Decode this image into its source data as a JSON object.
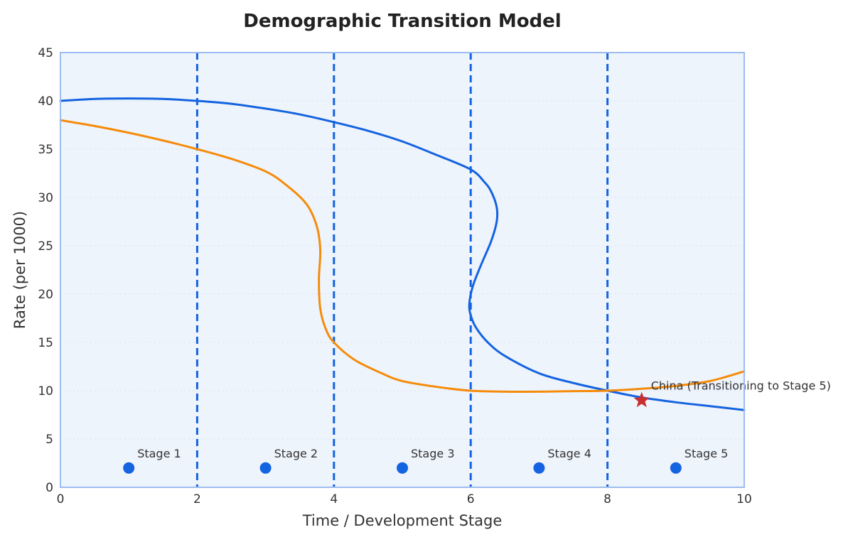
{
  "chart_data": {
    "type": "line",
    "title": "Demographic Transition Model",
    "xlabel": "Time / Development Stage",
    "ylabel": "Rate (per 1000)",
    "xlim": [
      0,
      10
    ],
    "ylim": [
      0,
      45
    ],
    "xticks": [
      0,
      2,
      4,
      6,
      8,
      10
    ],
    "yticks": [
      0,
      5,
      10,
      15,
      20,
      25,
      30,
      35,
      40,
      45
    ],
    "grid": "horizontal dotted",
    "colors": {
      "plot_background": "#eef4fc",
      "plot_border": "#9dbcf0",
      "birth_rate": "#1463e0",
      "death_rate": "#f58b0a",
      "stage_divider": "#1463e0",
      "stage_marker": "#1463e0",
      "highlight": "#c8302e"
    },
    "stage_dividers": [
      2,
      4,
      6,
      8
    ],
    "series": [
      {
        "key": "blue_curve",
        "color": "#1463e0",
        "points": [
          [
            0,
            40.0
          ],
          [
            0.5,
            40.2
          ],
          [
            1,
            40.25
          ],
          [
            1.5,
            40.2
          ],
          [
            2,
            40.0
          ],
          [
            2.5,
            39.7
          ],
          [
            3,
            39.2
          ],
          [
            3.5,
            38.6
          ],
          [
            4,
            37.8
          ],
          [
            4.5,
            36.9
          ],
          [
            5,
            35.8
          ],
          [
            5.5,
            34.4
          ],
          [
            6,
            32.9
          ],
          [
            6.2,
            31.6
          ],
          [
            6.3,
            30.6
          ],
          [
            6.38,
            29.0
          ],
          [
            6.38,
            27.5
          ],
          [
            6.3,
            25.5
          ],
          [
            6.15,
            23.0
          ],
          [
            6.03,
            20.8
          ],
          [
            5.98,
            19.0
          ],
          [
            6.0,
            17.8
          ],
          [
            6.08,
            16.5
          ],
          [
            6.25,
            15.0
          ],
          [
            6.5,
            13.6
          ],
          [
            7,
            11.8
          ],
          [
            7.5,
            10.8
          ],
          [
            8,
            10.0
          ],
          [
            8.5,
            9.3
          ],
          [
            9,
            8.8
          ],
          [
            9.5,
            8.4
          ],
          [
            10,
            8.0
          ]
        ]
      },
      {
        "key": "orange_curve",
        "color": "#f58b0a",
        "points": [
          [
            0,
            38.0
          ],
          [
            0.5,
            37.4
          ],
          [
            1,
            36.7
          ],
          [
            1.5,
            35.9
          ],
          [
            2,
            35.0
          ],
          [
            2.5,
            34.0
          ],
          [
            3,
            32.7
          ],
          [
            3.3,
            31.3
          ],
          [
            3.6,
            29.3
          ],
          [
            3.75,
            27.0
          ],
          [
            3.8,
            24.5
          ],
          [
            3.78,
            21.5
          ],
          [
            3.8,
            18.5
          ],
          [
            3.88,
            16.4
          ],
          [
            4,
            15.0
          ],
          [
            4.3,
            13.2
          ],
          [
            4.7,
            11.8
          ],
          [
            5,
            11.0
          ],
          [
            5.5,
            10.4
          ],
          [
            6,
            10.0
          ],
          [
            6.5,
            9.9
          ],
          [
            7,
            9.9
          ],
          [
            7.5,
            9.95
          ],
          [
            8,
            10.0
          ],
          [
            8.5,
            10.2
          ],
          [
            9,
            10.5
          ],
          [
            9.5,
            11.0
          ],
          [
            10,
            12.0
          ]
        ]
      }
    ],
    "stage_markers": [
      {
        "x": 1,
        "y": 2,
        "label": "Stage 1"
      },
      {
        "x": 3,
        "y": 2,
        "label": "Stage 2"
      },
      {
        "x": 5,
        "y": 2,
        "label": "Stage 3"
      },
      {
        "x": 7,
        "y": 2,
        "label": "Stage 4"
      },
      {
        "x": 9,
        "y": 2,
        "label": "Stage 5"
      }
    ],
    "annotation": {
      "x": 8.5,
      "y": 9.0,
      "label": "China (Transitioning to Stage 5)",
      "marker": "star-icon"
    }
  }
}
